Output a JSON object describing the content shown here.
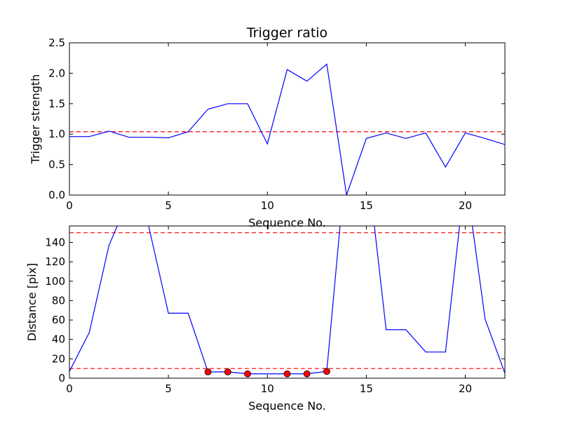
{
  "chart_data": [
    {
      "type": "line",
      "title": "Trigger ratio",
      "xlabel": "Sequence No.",
      "ylabel": "Trigger strength",
      "xlim": [
        0,
        22
      ],
      "ylim": [
        0,
        2.5
      ],
      "xticks": [
        0,
        5,
        10,
        15,
        20
      ],
      "yticks": [
        0.0,
        0.5,
        1.0,
        1.5,
        2.0,
        2.5
      ],
      "ytick_labels": [
        "0.0",
        "0.5",
        "1.0",
        "1.5",
        "2.0",
        "2.5"
      ],
      "grid": false,
      "series": [
        {
          "color": "#0000ff",
          "x": [
            0,
            1,
            2,
            3,
            4,
            5,
            6,
            7,
            8,
            9,
            10,
            11,
            12,
            13,
            14,
            15,
            16,
            17,
            18,
            19,
            20,
            21,
            22
          ],
          "y": [
            0.96,
            0.96,
            1.05,
            0.95,
            0.95,
            0.94,
            1.04,
            1.41,
            1.5,
            1.5,
            0.84,
            2.06,
            1.87,
            2.15,
            0.0,
            0.93,
            1.02,
            0.93,
            1.02,
            0.46,
            1.02,
            0.93,
            0.83
          ]
        }
      ],
      "reference_lines": [
        {
          "y": 1.04,
          "color": "#ff0000",
          "style": "dashed"
        }
      ]
    },
    {
      "type": "line",
      "title": "",
      "xlabel": "Sequence No.",
      "ylabel": "Distance [pix]",
      "xlim": [
        0,
        22
      ],
      "ylim": [
        0,
        157
      ],
      "xticks": [
        0,
        5,
        10,
        15,
        20
      ],
      "yticks": [
        0,
        20,
        40,
        60,
        80,
        100,
        120,
        140
      ],
      "ytick_labels": [
        "0",
        "20",
        "40",
        "60",
        "80",
        "100",
        "120",
        "140"
      ],
      "grid": false,
      "series": [
        {
          "color": "#0000ff",
          "x": [
            0,
            1,
            2,
            3,
            4,
            5,
            6,
            7,
            8,
            9,
            10,
            11,
            12,
            13,
            14,
            15,
            16,
            17,
            18,
            19,
            20,
            21,
            22
          ],
          "y": [
            7,
            47,
            137,
            185,
            157,
            67,
            67,
            6.5,
            6.5,
            4.5,
            4.5,
            4.5,
            4.5,
            7,
            230,
            230,
            50,
            50,
            27,
            27,
            210,
            61,
            5
          ]
        }
      ],
      "markers": {
        "color": "#ff0000",
        "x": [
          7,
          8,
          9,
          11,
          12,
          13
        ],
        "y": [
          6.5,
          6.5,
          4.5,
          4.5,
          4.5,
          7
        ]
      },
      "reference_lines": [
        {
          "y": 150,
          "color": "#ff0000",
          "style": "dashed"
        },
        {
          "y": 10,
          "color": "#ff0000",
          "style": "dashed"
        }
      ]
    }
  ]
}
